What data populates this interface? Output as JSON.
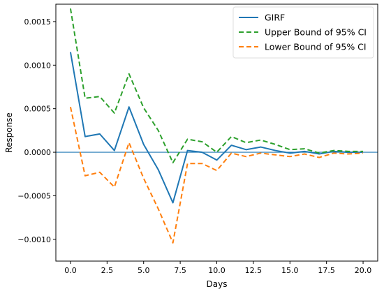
{
  "chart_data": {
    "type": "line",
    "title": "",
    "xlabel": "Days",
    "ylabel": "Response",
    "xlim": [
      -1.0,
      21.0
    ],
    "ylim": [
      -0.00125,
      0.0017
    ],
    "xticks": [
      0.0,
      2.5,
      5.0,
      7.5,
      10.0,
      12.5,
      15.0,
      17.5,
      20.0
    ],
    "xtick_labels": [
      "0.0",
      "2.5",
      "5.0",
      "7.5",
      "10.0",
      "12.5",
      "15.0",
      "17.5",
      "20.0"
    ],
    "yticks": [
      -0.001,
      -0.0005,
      0.0,
      0.0005,
      0.001,
      0.0015
    ],
    "ytick_labels": [
      "−0.0010",
      "−0.0005",
      "0.0000",
      "0.0005",
      "0.0010",
      "0.0015"
    ],
    "grid": false,
    "legend_position": "top-right",
    "reference_line": {
      "y": 0.0,
      "color": "#1f77b4"
    },
    "x": [
      0,
      1,
      2,
      3,
      4,
      5,
      6,
      7,
      8,
      9,
      10,
      11,
      12,
      13,
      14,
      15,
      16,
      17,
      18,
      19,
      20
    ],
    "series": [
      {
        "name": "GIRF",
        "color": "#1f77b4",
        "style": "solid",
        "values": [
          0.00115,
          0.00018,
          0.00021,
          2e-05,
          0.00052,
          9e-05,
          -0.0002,
          -0.00058,
          2e-05,
          0.0,
          -9e-05,
          8e-05,
          3e-05,
          6e-05,
          2e-05,
          -1e-05,
          1e-05,
          -2e-05,
          1e-05,
          0.0,
          0.0
        ]
      },
      {
        "name": "Upper Bound of 95% CI",
        "color": "#2ca02c",
        "style": "dashed",
        "values": [
          0.00165,
          0.00062,
          0.00064,
          0.00045,
          0.0009,
          0.00051,
          0.00025,
          -0.00012,
          0.00015,
          0.00012,
          0.0,
          0.00018,
          0.00011,
          0.00014,
          9e-05,
          3e-05,
          4e-05,
          -1e-05,
          2e-05,
          1e-05,
          1e-05
        ]
      },
      {
        "name": "Lower Bound of 95% CI",
        "color": "#ff7f0e",
        "style": "dashed",
        "values": [
          0.00052,
          -0.00027,
          -0.00023,
          -0.0004,
          0.00011,
          -0.0003,
          -0.00065,
          -0.00104,
          -0.00013,
          -0.00013,
          -0.00021,
          -1e-05,
          -5e-05,
          -1e-05,
          -3e-05,
          -5e-05,
          -2e-05,
          -6e-05,
          -1e-05,
          -2e-05,
          -1e-05
        ]
      }
    ]
  }
}
